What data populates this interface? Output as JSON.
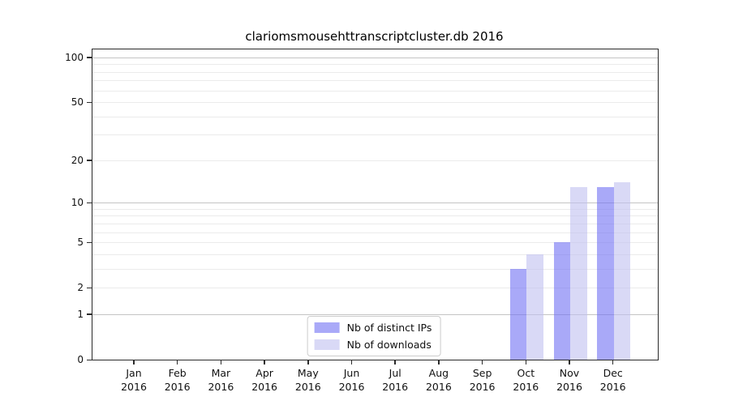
{
  "chart_data": {
    "type": "bar",
    "title": "clariomsmousehttranscriptcluster.db 2016",
    "categories": [
      {
        "month": "Jan",
        "year": "2016"
      },
      {
        "month": "Feb",
        "year": "2016"
      },
      {
        "month": "Mar",
        "year": "2016"
      },
      {
        "month": "Apr",
        "year": "2016"
      },
      {
        "month": "May",
        "year": "2016"
      },
      {
        "month": "Jun",
        "year": "2016"
      },
      {
        "month": "Jul",
        "year": "2016"
      },
      {
        "month": "Aug",
        "year": "2016"
      },
      {
        "month": "Sep",
        "year": "2016"
      },
      {
        "month": "Oct",
        "year": "2016"
      },
      {
        "month": "Nov",
        "year": "2016"
      },
      {
        "month": "Dec",
        "year": "2016"
      }
    ],
    "series": [
      {
        "name": "Nb of distinct IPs",
        "color": "#7070f3",
        "opacity": 0.6,
        "values": [
          0,
          0,
          0,
          0,
          0,
          0,
          0,
          0,
          0,
          3,
          5,
          13
        ]
      },
      {
        "name": "Nb of downloads",
        "color": "#c0c0f0",
        "opacity": 0.6,
        "values": [
          0,
          0,
          0,
          0,
          0,
          0,
          0,
          0,
          0,
          4,
          13,
          14
        ]
      }
    ],
    "yscale": "log1p",
    "yticks": [
      0,
      1,
      2,
      5,
      10,
      20,
      50,
      100
    ],
    "ylim": [
      0,
      113
    ],
    "grid": true,
    "legend_position": "lower center",
    "grid_minor_color": "#ebebeb",
    "grid_major_color": "#c4c4c4",
    "axis_color": "#2b2b2b"
  }
}
